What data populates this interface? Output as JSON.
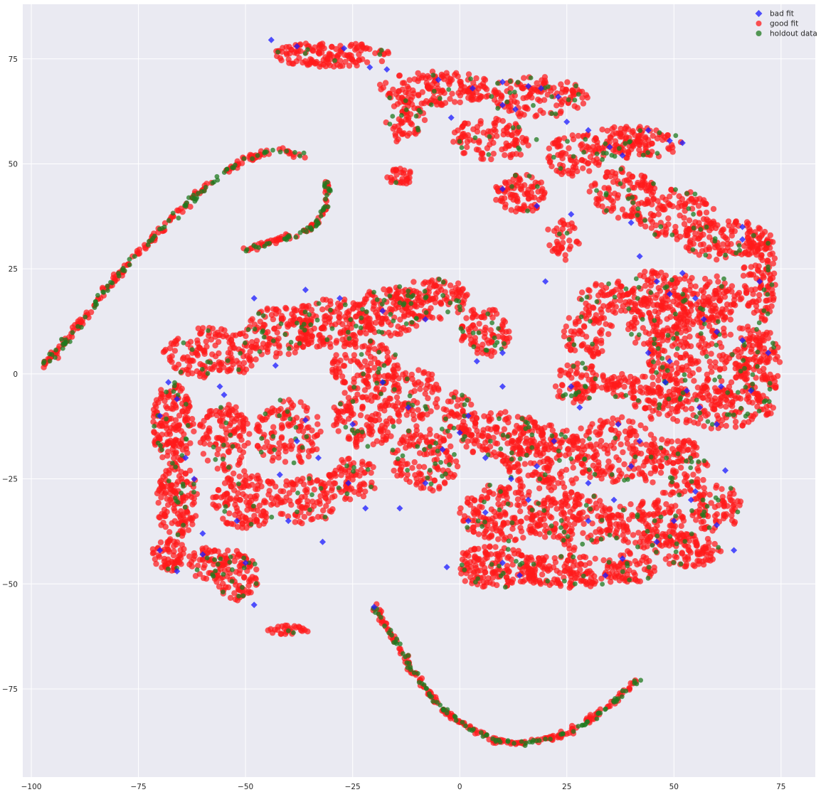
{
  "chart_data": {
    "type": "scatter",
    "title": "",
    "xlabel": "",
    "ylabel": "",
    "xlim": [
      -102,
      83
    ],
    "ylim": [
      -96,
      88
    ],
    "x_ticks": [
      -100,
      -75,
      -50,
      -25,
      0,
      25,
      50,
      75
    ],
    "y_ticks": [
      -75,
      -50,
      -25,
      0,
      25,
      50,
      75
    ],
    "x_tick_labels": [
      "−100",
      "−75",
      "−50",
      "−25",
      "0",
      "25",
      "50",
      "75"
    ],
    "y_tick_labels": [
      "−75",
      "−50",
      "−25",
      "0",
      "25",
      "50",
      "75"
    ],
    "grid": true,
    "legend_position": "top-right",
    "colors": {
      "background": "#eaeaf2",
      "grid": "#ffffff",
      "bad_fit": "#1a1aff",
      "good_fit": "#ff1a1a",
      "holdout_data": "#1f7a1f"
    },
    "series": [
      {
        "name": "bad fit",
        "marker": "diamond",
        "color": "#1a1aff",
        "points": [
          [
            -44,
            79.5
          ],
          [
            -38,
            78
          ],
          [
            -27,
            77.5
          ],
          [
            -21,
            73
          ],
          [
            -17,
            72.5
          ],
          [
            -5,
            70
          ],
          [
            3,
            68
          ],
          [
            10,
            69.5
          ],
          [
            16,
            68.5
          ],
          [
            19,
            68
          ],
          [
            23,
            66
          ],
          [
            -2,
            61
          ],
          [
            10,
            64
          ],
          [
            13,
            63
          ],
          [
            25,
            60
          ],
          [
            30,
            58
          ],
          [
            44,
            58
          ],
          [
            49,
            55.5
          ],
          [
            52,
            55
          ],
          [
            35,
            54
          ],
          [
            38,
            52
          ],
          [
            10,
            44
          ],
          [
            18,
            40
          ],
          [
            26,
            38
          ],
          [
            40,
            36
          ],
          [
            42,
            28
          ],
          [
            46,
            22
          ],
          [
            49,
            19
          ],
          [
            55,
            18
          ],
          [
            53,
            -4
          ],
          [
            56,
            -8
          ],
          [
            60,
            -12
          ],
          [
            66,
            35
          ],
          [
            66,
            32
          ],
          [
            70,
            22
          ],
          [
            -48,
            18
          ],
          [
            -36,
            20
          ],
          [
            -28,
            18
          ],
          [
            -18,
            15
          ],
          [
            -8,
            13
          ],
          [
            10,
            5
          ],
          [
            -43,
            2
          ],
          [
            -55,
            -5
          ],
          [
            -68,
            -2
          ],
          [
            -70,
            -10
          ],
          [
            -62,
            -25
          ],
          [
            -70,
            -42
          ],
          [
            -60,
            -43
          ],
          [
            -50,
            -45
          ],
          [
            -40,
            -35
          ],
          [
            -32,
            -40
          ],
          [
            -22,
            -32
          ],
          [
            -12,
            -8
          ],
          [
            -4,
            -18
          ],
          [
            2,
            -10
          ],
          [
            6,
            -20
          ],
          [
            12,
            -25
          ],
          [
            16,
            -30
          ],
          [
            18,
            -22
          ],
          [
            22,
            -16
          ],
          [
            30,
            -26
          ],
          [
            36,
            -30
          ],
          [
            40,
            -22
          ],
          [
            42,
            -16
          ],
          [
            46,
            -40
          ],
          [
            50,
            -35
          ],
          [
            54,
            -30
          ],
          [
            62,
            -23
          ],
          [
            64,
            -42
          ],
          [
            60,
            -36
          ],
          [
            34,
            -48
          ],
          [
            38,
            -44
          ],
          [
            10,
            -45
          ],
          [
            14,
            -48
          ],
          [
            -3,
            -46
          ],
          [
            2,
            -35
          ],
          [
            6,
            -33
          ],
          [
            28,
            -8
          ],
          [
            37,
            -12
          ],
          [
            48,
            -2
          ],
          [
            44,
            5
          ],
          [
            49,
            3
          ],
          [
            61,
            -3
          ],
          [
            66,
            8
          ],
          [
            -20,
            -55.5
          ],
          [
            -36,
            -11
          ],
          [
            -14,
            -32
          ],
          [
            -8,
            -26
          ],
          [
            0,
            -14
          ],
          [
            -33,
            -20
          ],
          [
            -52,
            -35
          ],
          [
            -48,
            -55
          ],
          [
            -26,
            -26
          ],
          [
            -42,
            -24
          ],
          [
            -56,
            -3
          ],
          [
            -66,
            -6
          ],
          [
            -64,
            -20
          ],
          [
            -60,
            -38
          ],
          [
            -66,
            -47
          ],
          [
            4,
            3
          ],
          [
            -18,
            -2
          ],
          [
            -38,
            -16
          ],
          [
            -25,
            -12
          ],
          [
            10,
            -3
          ],
          [
            26,
            -3
          ],
          [
            30,
            -35
          ],
          [
            55,
            -28
          ],
          [
            60,
            10
          ],
          [
            68,
            -4
          ],
          [
            72,
            5
          ],
          [
            20,
            22
          ],
          [
            52,
            24
          ],
          [
            57,
            13
          ]
        ]
      },
      {
        "name": "good fit",
        "marker": "circle",
        "color": "#ff1a1a",
        "points": []
      },
      {
        "name": "holdout data",
        "marker": "circle",
        "color": "#1f7a1f",
        "points": []
      }
    ],
    "clusters": [
      {
        "label": "upper-right arc",
        "center": [
          20,
          60
        ],
        "approx_points": 650
      },
      {
        "label": "right ring",
        "center": [
          58,
          5
        ],
        "approx_points": 900
      },
      {
        "label": "left body",
        "center": [
          -40,
          -15
        ],
        "approx_points": 1300
      },
      {
        "label": "center dome",
        "center": [
          -10,
          5
        ],
        "approx_points": 900
      },
      {
        "label": "lower-right body",
        "center": [
          20,
          -30
        ],
        "approx_points": 1200
      },
      {
        "label": "left curve strand",
        "from": [
          -97,
          2
        ],
        "via": [
          -62,
          40
        ],
        "to": [
          -35,
          52
        ]
      },
      {
        "label": "hook strand",
        "from": [
          -50,
          29
        ],
        "via": [
          -32,
          40
        ],
        "to": [
          -31,
          46
        ]
      },
      {
        "label": "bottom arc strand",
        "from": [
          -20,
          -55
        ],
        "via": [
          13,
          -88
        ],
        "to": [
          42,
          -72
        ]
      },
      {
        "label": "small island",
        "center": [
          -40,
          -61
        ],
        "approx_points": 25
      }
    ]
  },
  "legend": {
    "items": [
      {
        "label": "bad fit",
        "marker": "diamond",
        "color": "#1a1aff"
      },
      {
        "label": "good fit",
        "marker": "circle",
        "color": "#ff1a1a"
      },
      {
        "label": "holdout data",
        "marker": "circle",
        "color": "#1f7a1f"
      }
    ]
  }
}
